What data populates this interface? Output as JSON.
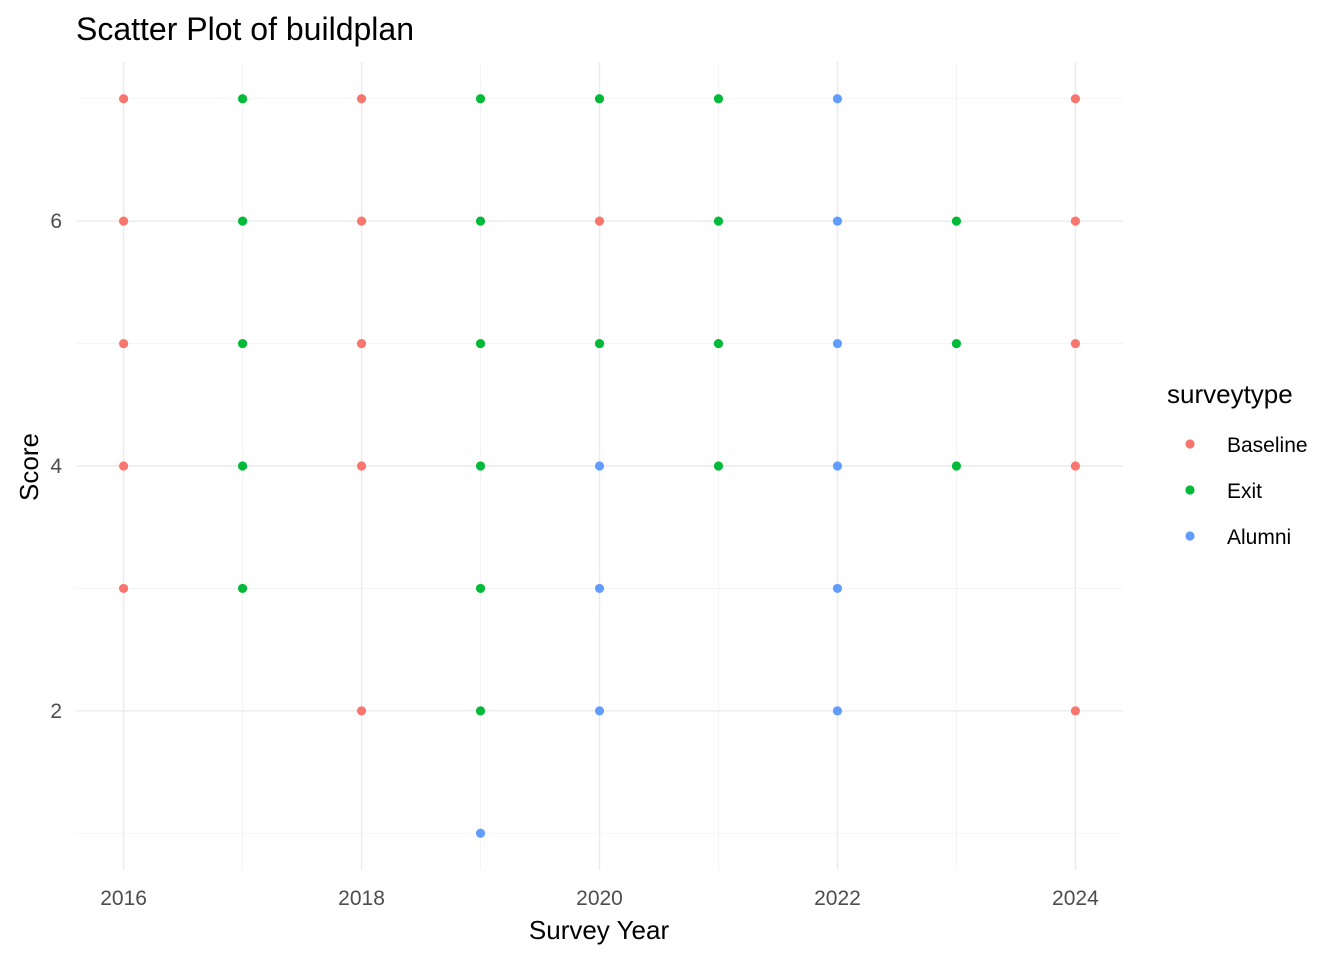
{
  "chart_data": {
    "type": "scatter",
    "title": "Scatter Plot of buildplan",
    "xlabel": "Survey Year",
    "ylabel": "Score",
    "xlim": [
      2016,
      2024
    ],
    "ylim": [
      1,
      7
    ],
    "x_ticks": [
      2016,
      2018,
      2020,
      2022,
      2024
    ],
    "y_ticks": [
      2,
      4,
      6
    ],
    "grid": true,
    "legend": {
      "title": "surveytype",
      "position": "right"
    },
    "series": [
      {
        "name": "Baseline",
        "color": "#F8766D",
        "points": [
          {
            "x": 2016,
            "y": 3
          },
          {
            "x": 2016,
            "y": 4
          },
          {
            "x": 2016,
            "y": 5
          },
          {
            "x": 2016,
            "y": 6
          },
          {
            "x": 2016,
            "y": 7
          },
          {
            "x": 2018,
            "y": 2
          },
          {
            "x": 2018,
            "y": 4
          },
          {
            "x": 2018,
            "y": 5
          },
          {
            "x": 2018,
            "y": 6
          },
          {
            "x": 2018,
            "y": 7
          },
          {
            "x": 2020,
            "y": 6
          },
          {
            "x": 2024,
            "y": 2
          },
          {
            "x": 2024,
            "y": 4
          },
          {
            "x": 2024,
            "y": 5
          },
          {
            "x": 2024,
            "y": 6
          },
          {
            "x": 2024,
            "y": 7
          }
        ]
      },
      {
        "name": "Exit",
        "color": "#00BA38",
        "points": [
          {
            "x": 2017,
            "y": 3
          },
          {
            "x": 2017,
            "y": 4
          },
          {
            "x": 2017,
            "y": 5
          },
          {
            "x": 2017,
            "y": 6
          },
          {
            "x": 2017,
            "y": 7
          },
          {
            "x": 2019,
            "y": 2
          },
          {
            "x": 2019,
            "y": 3
          },
          {
            "x": 2019,
            "y": 4
          },
          {
            "x": 2019,
            "y": 5
          },
          {
            "x": 2019,
            "y": 6
          },
          {
            "x": 2019,
            "y": 7
          },
          {
            "x": 2020,
            "y": 5
          },
          {
            "x": 2020,
            "y": 7
          },
          {
            "x": 2021,
            "y": 4
          },
          {
            "x": 2021,
            "y": 5
          },
          {
            "x": 2021,
            "y": 6
          },
          {
            "x": 2021,
            "y": 7
          },
          {
            "x": 2023,
            "y": 4
          },
          {
            "x": 2023,
            "y": 5
          },
          {
            "x": 2023,
            "y": 6
          }
        ]
      },
      {
        "name": "Alumni",
        "color": "#619CFF",
        "points": [
          {
            "x": 2019,
            "y": 1
          },
          {
            "x": 2020,
            "y": 2
          },
          {
            "x": 2020,
            "y": 3
          },
          {
            "x": 2020,
            "y": 4
          },
          {
            "x": 2022,
            "y": 2
          },
          {
            "x": 2022,
            "y": 3
          },
          {
            "x": 2022,
            "y": 4
          },
          {
            "x": 2022,
            "y": 5
          },
          {
            "x": 2022,
            "y": 6
          },
          {
            "x": 2022,
            "y": 7
          }
        ]
      }
    ]
  }
}
